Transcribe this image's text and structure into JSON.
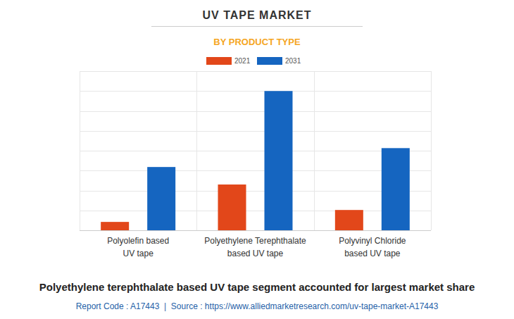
{
  "chart_data": {
    "type": "bar",
    "title": "UV TAPE MARKET",
    "subtitle": "BY PRODUCT TYPE",
    "categories": [
      "Polyolefin based\nUV tape",
      "Polyethylene Terephthalate\nbased UV tape",
      "Polyvinyl Chloride\nbased UV tape"
    ],
    "series": [
      {
        "name": "2021",
        "color": "#e2471a",
        "values": [
          0.42,
          2.3,
          1.02
        ]
      },
      {
        "name": "2031",
        "color": "#1565c0",
        "values": [
          3.18,
          7.0,
          4.13
        ]
      }
    ],
    "ylim": [
      0,
      8
    ],
    "yticks": [
      0,
      1,
      2,
      3,
      4,
      5,
      6,
      7,
      8
    ],
    "grid": true,
    "tick_labels": "x",
    "caption": "Polyethylene terephthalate based UV tape segment accounted for largest market share",
    "source": "Report Code : A17443  |  Source : https://www.alliedmarketresearch.com/uv-tape-market-A17443"
  }
}
